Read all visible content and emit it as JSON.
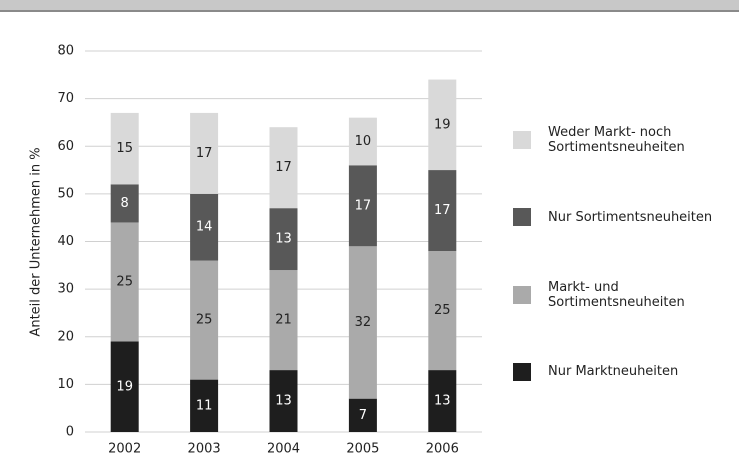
{
  "chart_data": {
    "type": "stacked_bar",
    "ylabel": "Anteil der Unternehmen in %",
    "categories": [
      "2002",
      "2003",
      "2004",
      "2005",
      "2006"
    ],
    "series": [
      {
        "name": "Nur Marktneuheiten",
        "color": "#1e1e1e",
        "values": [
          19,
          11,
          13,
          7,
          13
        ]
      },
      {
        "name": "Markt- und Sortimentsneuheiten",
        "color": "#aaaaaa",
        "values": [
          25,
          25,
          21,
          32,
          25
        ]
      },
      {
        "name": "Nur Sortimentsneuheiten",
        "color": "#585858",
        "values": [
          8,
          14,
          13,
          17,
          17
        ]
      },
      {
        "name": "Weder Markt- noch Sortimentsneuheiten",
        "color": "#d9d9d9",
        "values": [
          15,
          17,
          17,
          10,
          19
        ]
      }
    ],
    "ylim": [
      0,
      80
    ],
    "yticks": [
      0,
      10,
      20,
      30,
      40,
      50,
      60,
      70,
      80
    ],
    "grid": true
  }
}
